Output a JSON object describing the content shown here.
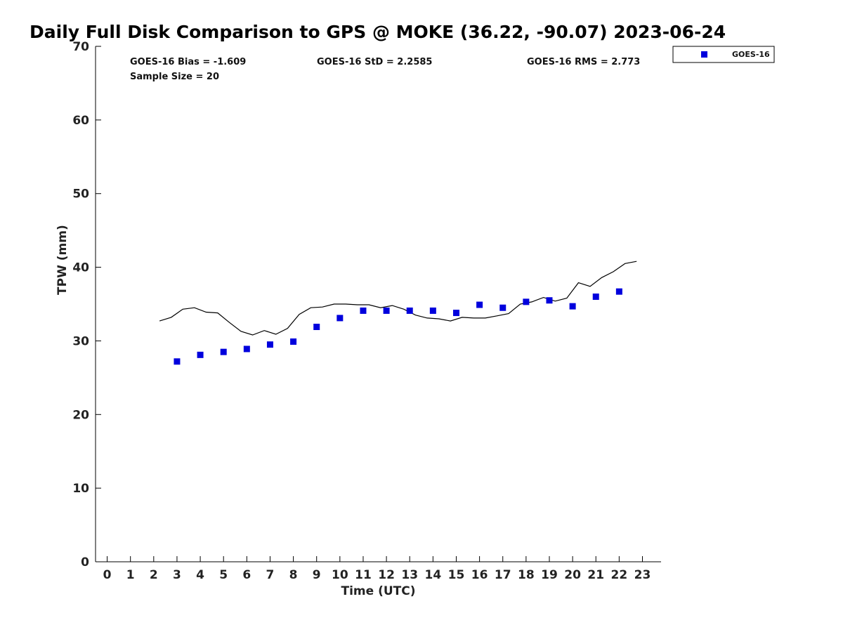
{
  "chart_data": {
    "type": "scatter",
    "title": "Daily Full Disk Comparison to GPS @ MOKE (36.22, -90.07) 2023-06-24",
    "xlabel": "Time (UTC)",
    "ylabel": "TPW (mm)",
    "xlim": [
      -0.5,
      23.8
    ],
    "ylim": [
      0,
      70
    ],
    "x_ticks": [
      "0",
      "1",
      "2",
      "3",
      "4",
      "5",
      "6",
      "7",
      "8",
      "9",
      "10",
      "11",
      "12",
      "13",
      "14",
      "15",
      "16",
      "17",
      "18",
      "19",
      "20",
      "21",
      "22",
      "23"
    ],
    "y_ticks": [
      "0",
      "10",
      "20",
      "30",
      "40",
      "50",
      "60",
      "70"
    ],
    "grid": false,
    "legend_position": "top-right",
    "stats": {
      "bias": "GOES-16 Bias = -1.609",
      "std": "GOES-16 StD = 2.2585",
      "rms": "GOES-16 RMS = 2.773",
      "sample_size": "Sample Size = 20"
    },
    "series": [
      {
        "name": "GOES-16",
        "marker": "square",
        "color": "#0000dd",
        "x": [
          3,
          4,
          5,
          6,
          7,
          8,
          9,
          10,
          11,
          12,
          13,
          14,
          15,
          16,
          17,
          18,
          19,
          20,
          21,
          22
        ],
        "y": [
          27.2,
          28.1,
          28.5,
          28.9,
          29.5,
          29.9,
          31.9,
          33.1,
          34.1,
          34.1,
          34.1,
          34.1,
          33.8,
          34.9,
          34.5,
          35.3,
          35.5,
          34.7,
          36.0,
          36.7
        ]
      },
      {
        "name": "",
        "marker": "line",
        "color": "#000000",
        "x": [
          2.25,
          2.75,
          3.25,
          3.75,
          4.25,
          4.75,
          5.25,
          5.75,
          6.25,
          6.75,
          7.25,
          7.75,
          8.25,
          8.75,
          9.25,
          9.75,
          10.25,
          10.75,
          11.25,
          11.75,
          12.25,
          12.75,
          13.25,
          13.75,
          14.25,
          14.75,
          15.25,
          15.75,
          16.25,
          16.75,
          17.25,
          17.75,
          18.25,
          18.75,
          19.25,
          19.75,
          20.25,
          20.75,
          21.25,
          21.75,
          22.25,
          22.75
        ],
        "y": [
          32.7,
          33.2,
          34.3,
          34.5,
          33.9,
          33.8,
          32.5,
          31.3,
          30.8,
          31.4,
          30.9,
          31.7,
          33.6,
          34.5,
          34.6,
          35.0,
          35.0,
          34.9,
          34.9,
          34.5,
          34.8,
          34.3,
          33.5,
          33.1,
          33.0,
          32.7,
          33.2,
          33.1,
          33.1,
          33.4,
          33.7,
          35.0,
          35.3,
          35.9,
          35.4,
          35.8,
          37.9,
          37.4,
          38.6,
          39.4,
          40.5,
          40.8
        ]
      }
    ]
  }
}
